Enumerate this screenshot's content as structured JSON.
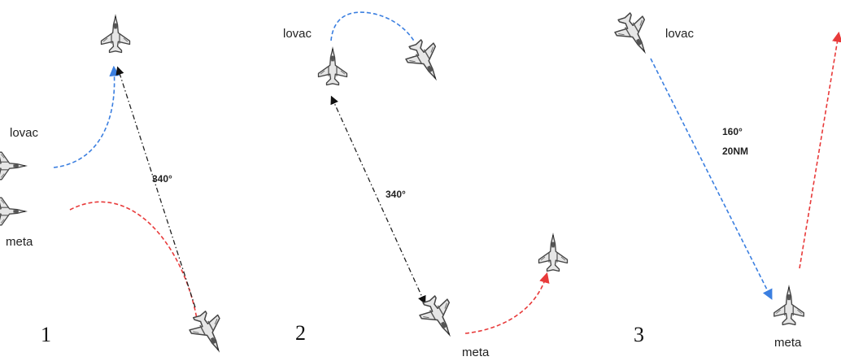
{
  "colors": {
    "hunter_path": "#3b7fe0",
    "target_path": "#e83a3a",
    "bearing_line": "#222222",
    "aircraft_fill": "#e6e6e6",
    "aircraft_stroke": "#444444"
  },
  "aircraft_icon": "fighter-jet-icon",
  "panels": [
    {
      "number": "1",
      "hunter_label": "lovac",
      "target_label": "meta",
      "bearing": "340°"
    },
    {
      "number": "2",
      "hunter_label": "lovac",
      "target_label": "meta",
      "bearing": "340°"
    },
    {
      "number": "3",
      "hunter_label": "lovac",
      "target_label": "meta",
      "bearing": "160°",
      "distance": "20NM"
    }
  ]
}
